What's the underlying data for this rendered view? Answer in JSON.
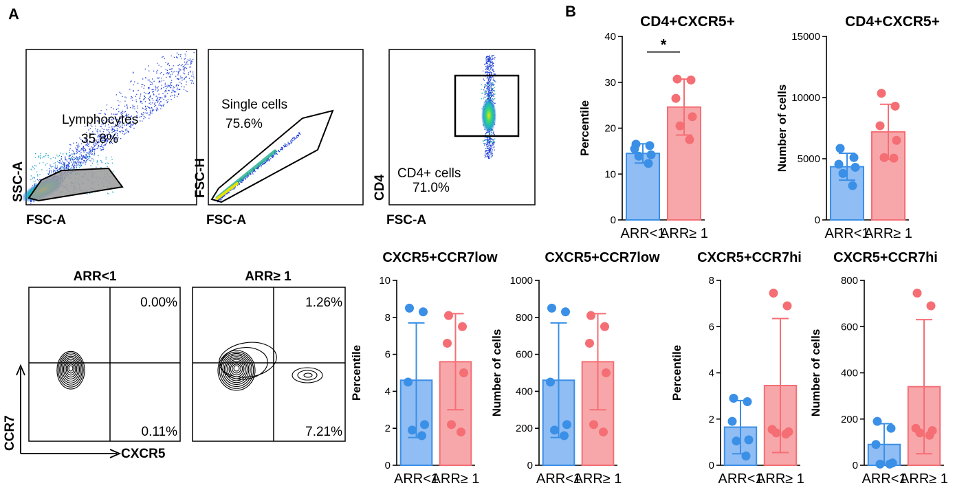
{
  "panel_labels": {
    "a": "A",
    "b": "B"
  },
  "colors": {
    "group1": "#3a8fe6",
    "group1_fill": "#8fbdf4",
    "group2": "#f46e74",
    "group2_fill": "#f7a7aa"
  },
  "gating": [
    {
      "gate_label": "Lymphocytes",
      "percent": "35.8%",
      "x_axis": "FSC-A",
      "y_axis": "SSC-A"
    },
    {
      "gate_label": "Single cells",
      "percent": "75.6%",
      "x_axis": "FSC-A",
      "y_axis": "FSC-H"
    },
    {
      "gate_label": "CD4+ cells",
      "percent": "71.0%",
      "x_axis": "FSC-A",
      "y_axis": "CD4"
    }
  ],
  "contour": {
    "x_axis": "CXCR5",
    "y_axis": "CCR7",
    "plots": [
      {
        "title": "ARR<1",
        "upper_right": "0.00%",
        "lower_right": "0.11%"
      },
      {
        "title": "ARR≥ 1",
        "upper_right": "1.26%",
        "lower_right": "7.21%"
      }
    ]
  },
  "chart_data": [
    {
      "type": "bar",
      "title": "CD4+CXCR5+",
      "ylabel": "Percentile",
      "categories": [
        "ARR<1",
        "ARR≥ 1"
      ],
      "ylim": [
        0,
        40
      ],
      "yticks": [
        0,
        10,
        20,
        30,
        40
      ],
      "means": [
        14.5,
        24.6
      ],
      "errors": [
        2.1,
        6.1
      ],
      "points": [
        [
          16.5,
          16.2,
          15.5,
          14.2,
          13.9,
          12.3
        ],
        [
          30.7,
          30.5,
          26.5,
          22.5,
          20.5,
          17.5
        ]
      ],
      "significance": "*"
    },
    {
      "type": "bar",
      "title": "CD4+CXCR5+",
      "ylabel": "Number of cells",
      "categories": [
        "ARR<1",
        "ARR≥ 1"
      ],
      "ylim": [
        0,
        15000
      ],
      "yticks": [
        0,
        5000,
        10000,
        15000
      ],
      "means": [
        4350,
        7200
      ],
      "errors": [
        1100,
        2250
      ],
      "points": [
        [
          5850,
          5100,
          4550,
          4300,
          3800,
          2800
        ],
        [
          10350,
          9300,
          7700,
          6500,
          5100,
          5050
        ]
      ]
    },
    {
      "type": "bar",
      "title": "CXCR5+CCR7low",
      "ylabel": "Percentile",
      "categories": [
        "ARR<1",
        "ARR≥ 1"
      ],
      "ylim": [
        0,
        10
      ],
      "yticks": [
        0,
        2,
        4,
        6,
        8,
        10
      ],
      "means": [
        4.6,
        5.6
      ],
      "errors": [
        3.1,
        2.6
      ],
      "points": [
        [
          8.5,
          8.3,
          4.5,
          2.2,
          1.9,
          1.6
        ],
        [
          8.1,
          7.5,
          6.6,
          5.0,
          2.2,
          1.8
        ]
      ]
    },
    {
      "type": "bar",
      "title": "CXCR5+CCR7low",
      "ylabel": "Number of cells",
      "categories": [
        "ARR<1",
        "ARR≥ 1"
      ],
      "ylim": [
        0,
        1000
      ],
      "yticks": [
        0,
        200,
        400,
        600,
        800,
        1000
      ],
      "means": [
        460,
        560
      ],
      "errors": [
        310,
        260
      ],
      "points": [
        [
          850,
          830,
          450,
          220,
          190,
          160
        ],
        [
          810,
          750,
          660,
          500,
          220,
          180
        ]
      ]
    },
    {
      "type": "bar",
      "title": "CXCR5+CCR7hi",
      "ylabel": "Percentile",
      "categories": [
        "ARR<1",
        "ARR≥ 1"
      ],
      "ylim": [
        0,
        8
      ],
      "yticks": [
        0,
        2,
        4,
        6,
        8
      ],
      "means": [
        1.65,
        3.45
      ],
      "errors": [
        1.15,
        2.9
      ],
      "points": [
        [
          2.9,
          2.75,
          1.9,
          1.1,
          1.05,
          0.4
        ],
        [
          7.45,
          6.9,
          1.55,
          1.45,
          1.4,
          1.35
        ]
      ]
    },
    {
      "type": "bar",
      "title": "CXCR5+CCR7hi",
      "ylabel": "Number of cells",
      "categories": [
        "ARR<1",
        "ARR≥ 1"
      ],
      "ylim": [
        0,
        800
      ],
      "yticks": [
        0,
        200,
        400,
        600,
        800
      ],
      "means": [
        90,
        340
      ],
      "errors": [
        90,
        290
      ],
      "points": [
        [
          190,
          160,
          90,
          10,
          5,
          5
        ],
        [
          745,
          690,
          160,
          150,
          140,
          130
        ]
      ]
    }
  ]
}
